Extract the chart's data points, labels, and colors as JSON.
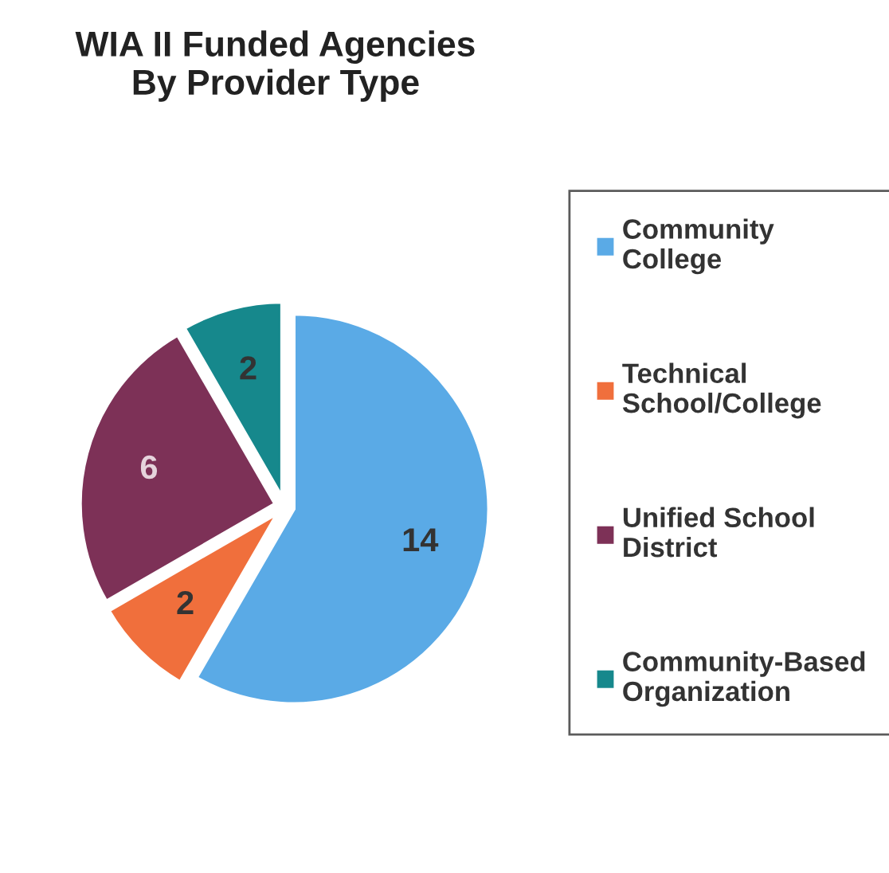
{
  "chart_data": {
    "type": "pie",
    "title": "WIA II Funded Agencies\nBy Provider Type",
    "categories": [
      "Community College",
      "Technical School/College",
      "Unified School District",
      "Community-Based Organization"
    ],
    "values": [
      14,
      2,
      6,
      2
    ],
    "colors": [
      "#5aaae6",
      "#f06f3c",
      "#7d3157",
      "#16888c"
    ],
    "data_labels": true,
    "legend": "right"
  }
}
